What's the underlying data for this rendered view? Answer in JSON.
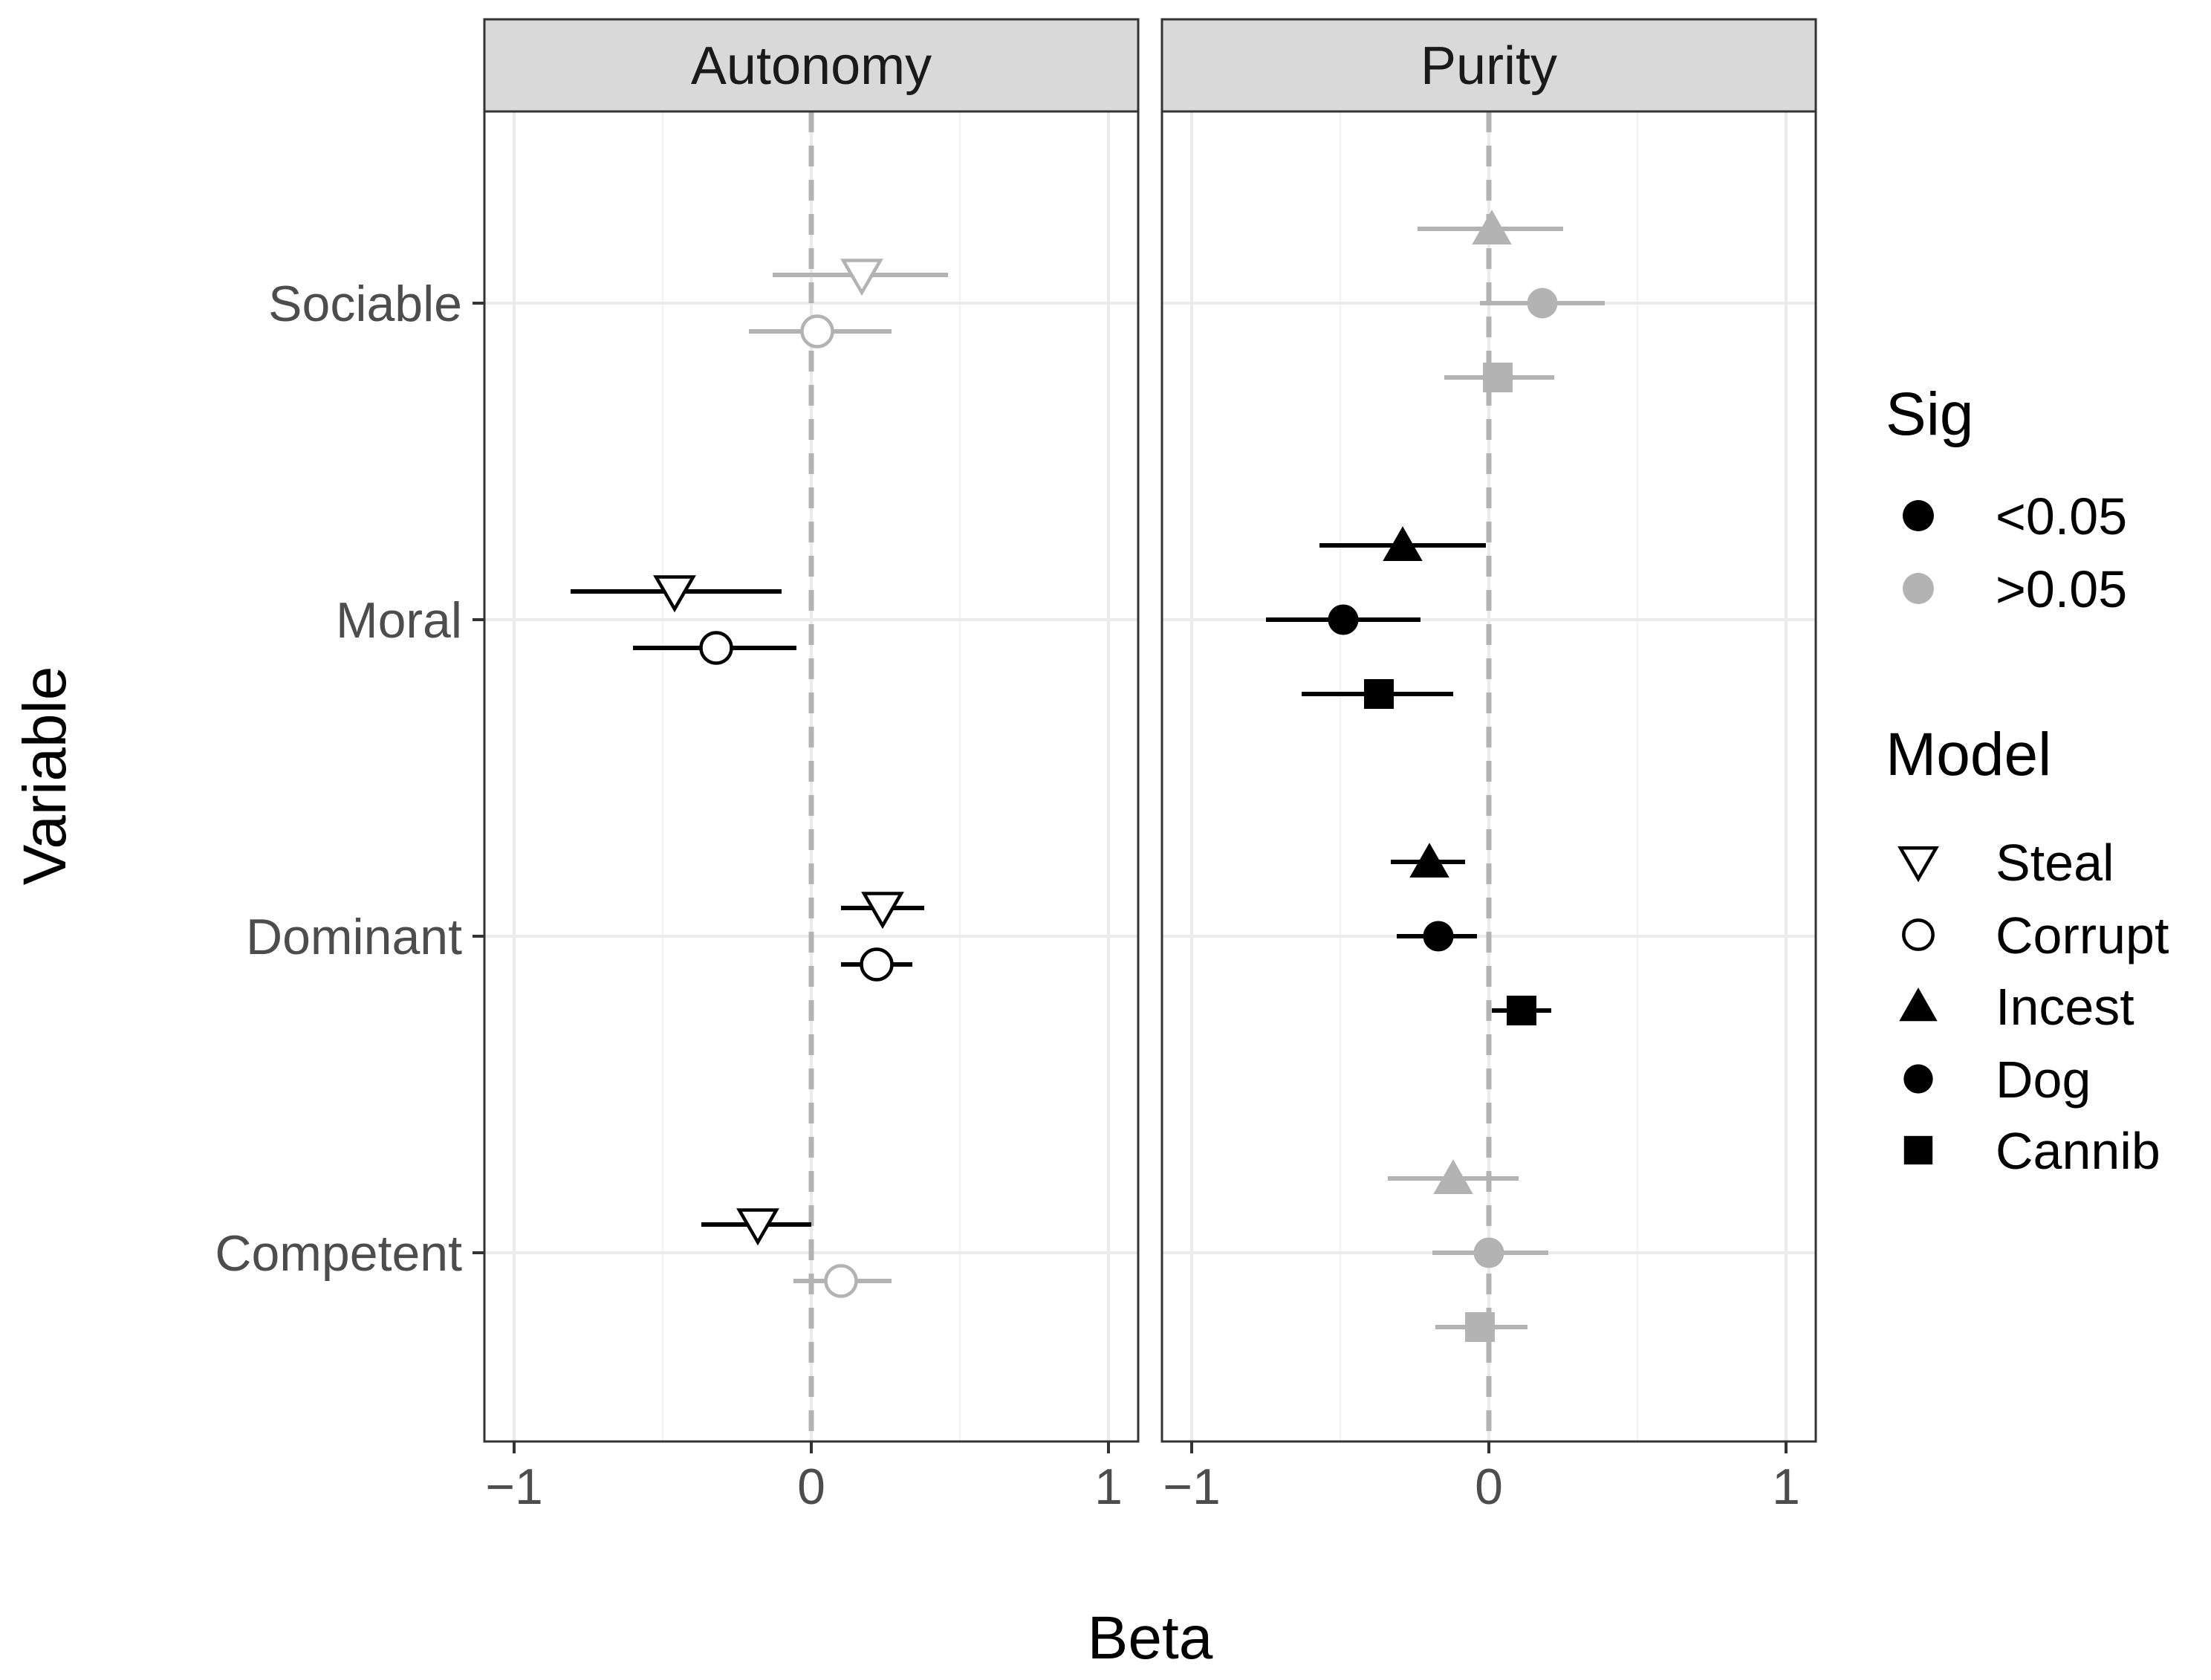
{
  "chart_data": {
    "type": "forest",
    "xlabel": "Beta",
    "ylabel": "Variable",
    "xlim": [
      -1.1,
      1.1
    ],
    "xticks": [
      -1,
      0,
      1
    ],
    "xtick_labels": [
      "−1",
      "0",
      "1"
    ],
    "reference_line": 0,
    "variables": [
      "Sociable",
      "Moral",
      "Dominant",
      "Competent"
    ],
    "panels": [
      {
        "name": "Autonomy",
        "points": [
          {
            "variable": "Sociable",
            "model": "Steal",
            "beta": 0.17,
            "lo": -0.13,
            "hi": 0.46,
            "sig": ">0.05"
          },
          {
            "variable": "Sociable",
            "model": "Corrupt",
            "beta": 0.02,
            "lo": -0.21,
            "hi": 0.27,
            "sig": ">0.05"
          },
          {
            "variable": "Moral",
            "model": "Steal",
            "beta": -0.46,
            "lo": -0.81,
            "hi": -0.1,
            "sig": "<0.05"
          },
          {
            "variable": "Moral",
            "model": "Corrupt",
            "beta": -0.32,
            "lo": -0.6,
            "hi": -0.05,
            "sig": "<0.05"
          },
          {
            "variable": "Dominant",
            "model": "Steal",
            "beta": 0.24,
            "lo": 0.1,
            "hi": 0.38,
            "sig": "<0.05"
          },
          {
            "variable": "Dominant",
            "model": "Corrupt",
            "beta": 0.22,
            "lo": 0.1,
            "hi": 0.34,
            "sig": "<0.05"
          },
          {
            "variable": "Competent",
            "model": "Steal",
            "beta": -0.18,
            "lo": -0.37,
            "hi": 0.0,
            "sig": "<0.05"
          },
          {
            "variable": "Competent",
            "model": "Corrupt",
            "beta": 0.1,
            "lo": -0.06,
            "hi": 0.27,
            "sig": ">0.05"
          }
        ]
      },
      {
        "name": "Purity",
        "points": [
          {
            "variable": "Sociable",
            "model": "Incest",
            "beta": 0.01,
            "lo": -0.24,
            "hi": 0.25,
            "sig": ">0.05"
          },
          {
            "variable": "Sociable",
            "model": "Dog",
            "beta": 0.18,
            "lo": -0.03,
            "hi": 0.39,
            "sig": ">0.05"
          },
          {
            "variable": "Sociable",
            "model": "Cannib",
            "beta": 0.03,
            "lo": -0.15,
            "hi": 0.22,
            "sig": ">0.05"
          },
          {
            "variable": "Moral",
            "model": "Incest",
            "beta": -0.29,
            "lo": -0.57,
            "hi": -0.01,
            "sig": "<0.05"
          },
          {
            "variable": "Moral",
            "model": "Dog",
            "beta": -0.49,
            "lo": -0.75,
            "hi": -0.23,
            "sig": "<0.05"
          },
          {
            "variable": "Moral",
            "model": "Cannib",
            "beta": -0.37,
            "lo": -0.63,
            "hi": -0.12,
            "sig": "<0.05"
          },
          {
            "variable": "Dominant",
            "model": "Incest",
            "beta": -0.2,
            "lo": -0.33,
            "hi": -0.08,
            "sig": "<0.05"
          },
          {
            "variable": "Dominant",
            "model": "Dog",
            "beta": -0.17,
            "lo": -0.31,
            "hi": -0.04,
            "sig": "<0.05"
          },
          {
            "variable": "Dominant",
            "model": "Cannib",
            "beta": 0.11,
            "lo": 0.01,
            "hi": 0.21,
            "sig": "<0.05"
          },
          {
            "variable": "Competent",
            "model": "Incest",
            "beta": -0.12,
            "lo": -0.34,
            "hi": 0.1,
            "sig": ">0.05"
          },
          {
            "variable": "Competent",
            "model": "Dog",
            "beta": 0.0,
            "lo": -0.19,
            "hi": 0.2,
            "sig": ">0.05"
          },
          {
            "variable": "Competent",
            "model": "Cannib",
            "beta": -0.03,
            "lo": -0.18,
            "hi": 0.13,
            "sig": ">0.05"
          }
        ]
      }
    ],
    "legend": {
      "position": "right",
      "sig": {
        "title": "Sig",
        "items": [
          {
            "label": "<0.05",
            "color": "#000000"
          },
          {
            "label": ">0.05",
            "color": "#b3b3b3"
          }
        ]
      },
      "model": {
        "title": "Model",
        "items": [
          {
            "label": "Steal",
            "shape": "triangle-down-open"
          },
          {
            "label": "Corrupt",
            "shape": "circle-open"
          },
          {
            "label": "Incest",
            "shape": "triangle-up-filled"
          },
          {
            "label": "Dog",
            "shape": "circle-filled"
          },
          {
            "label": "Cannib",
            "shape": "square-filled"
          }
        ]
      }
    }
  }
}
